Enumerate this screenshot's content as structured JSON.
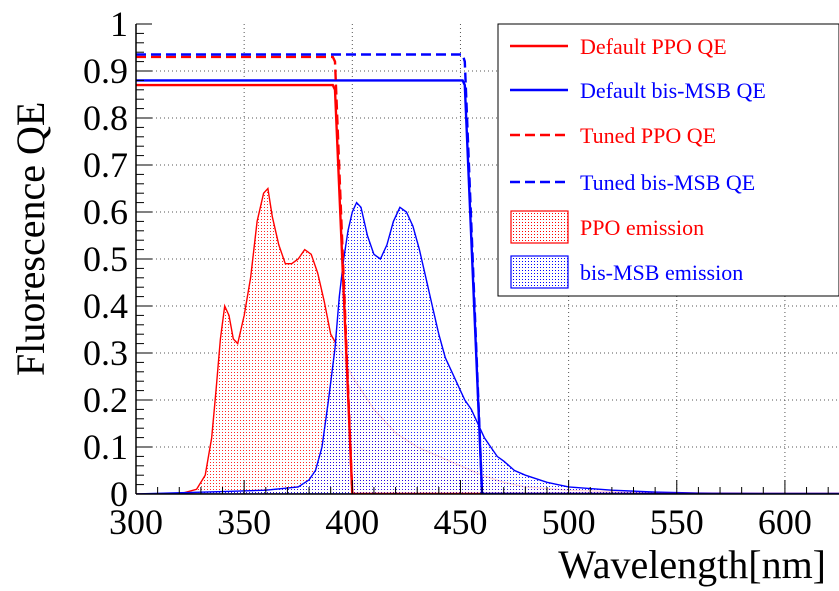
{
  "chart_data": {
    "type": "line",
    "xlabel": "Wavelength[nm]",
    "ylabel": "Fluorescence QE",
    "xlim": [
      300,
      625
    ],
    "ylim": [
      0,
      1
    ],
    "x_ticks": [
      300,
      350,
      400,
      450,
      500,
      550,
      600
    ],
    "x_tick_labels": [
      "300",
      "350",
      "400",
      "450",
      "500",
      "550",
      "600"
    ],
    "y_ticks": [
      0,
      0.1,
      0.2,
      0.3,
      0.4,
      0.5,
      0.6,
      0.7,
      0.8,
      0.9,
      1
    ],
    "y_tick_labels": [
      "0",
      "0.1",
      "0.2",
      "0.3",
      "0.4",
      "0.5",
      "0.6",
      "0.7",
      "0.8",
      "0.9",
      "1"
    ],
    "grid": true,
    "legend_position": "top-right",
    "colors": {
      "ppo": "#ff0000",
      "bismsb": "#0000ff"
    },
    "series": [
      {
        "name": "Default PPO QE",
        "kind": "line",
        "style": "solid",
        "color": "#ff0000",
        "x": [
          300,
          391,
          392,
          400,
          401,
          625
        ],
        "y": [
          0.87,
          0.87,
          0.86,
          0.0,
          0.0,
          0.0
        ]
      },
      {
        "name": "Default bis-MSB QE",
        "kind": "line",
        "style": "solid",
        "color": "#0000ff",
        "x": [
          300,
          451,
          452,
          460,
          461,
          625
        ],
        "y": [
          0.88,
          0.88,
          0.87,
          0.0,
          0.0,
          0.0
        ]
      },
      {
        "name": "Tuned PPO QE",
        "kind": "line",
        "style": "dashed",
        "color": "#ff0000",
        "x": [
          300,
          391,
          392,
          400,
          401
        ],
        "y": [
          0.93,
          0.93,
          0.92,
          0.0,
          0.0
        ]
      },
      {
        "name": "Tuned bis-MSB QE",
        "kind": "line",
        "style": "dashed",
        "color": "#0000ff",
        "x": [
          300,
          451,
          452,
          460,
          461
        ],
        "y": [
          0.935,
          0.935,
          0.92,
          0.0,
          0.0
        ]
      },
      {
        "name": "PPO emission",
        "kind": "area",
        "color": "#ff0000",
        "x": [
          300,
          320,
          328,
          332,
          335,
          337,
          339,
          341,
          343,
          345,
          347,
          350,
          353,
          356,
          359,
          361,
          363,
          366,
          369,
          372,
          375,
          378,
          381,
          384,
          387,
          390,
          395,
          400,
          410,
          420,
          430,
          440,
          450,
          460,
          470,
          480,
          500,
          520,
          550,
          600,
          625
        ],
        "y": [
          0.0,
          0.0,
          0.01,
          0.04,
          0.12,
          0.22,
          0.33,
          0.4,
          0.38,
          0.33,
          0.32,
          0.38,
          0.46,
          0.58,
          0.64,
          0.65,
          0.59,
          0.53,
          0.49,
          0.49,
          0.5,
          0.52,
          0.51,
          0.47,
          0.41,
          0.34,
          0.3,
          0.25,
          0.18,
          0.13,
          0.1,
          0.08,
          0.06,
          0.04,
          0.025,
          0.015,
          0.008,
          0.005,
          0.002,
          0.0,
          0.0
        ]
      },
      {
        "name": "bis-MSB emission",
        "kind": "area",
        "color": "#0000ff",
        "x": [
          300,
          340,
          360,
          375,
          380,
          383,
          386,
          389,
          392,
          394,
          396,
          398,
          400,
          402,
          404,
          407,
          410,
          413,
          416,
          419,
          422,
          425,
          428,
          431,
          434,
          437,
          440,
          443,
          446,
          449,
          452,
          455,
          458,
          461,
          464,
          467,
          470,
          475,
          480,
          490,
          500,
          520,
          540,
          560,
          580,
          600,
          625
        ],
        "y": [
          0.0,
          0.005,
          0.008,
          0.015,
          0.03,
          0.05,
          0.1,
          0.2,
          0.31,
          0.42,
          0.5,
          0.56,
          0.6,
          0.62,
          0.61,
          0.55,
          0.51,
          0.5,
          0.53,
          0.58,
          0.61,
          0.6,
          0.57,
          0.52,
          0.46,
          0.4,
          0.34,
          0.29,
          0.26,
          0.23,
          0.2,
          0.18,
          0.15,
          0.12,
          0.1,
          0.08,
          0.07,
          0.05,
          0.04,
          0.025,
          0.015,
          0.008,
          0.004,
          0.002,
          0.001,
          0.0,
          0.0
        ]
      }
    ]
  }
}
